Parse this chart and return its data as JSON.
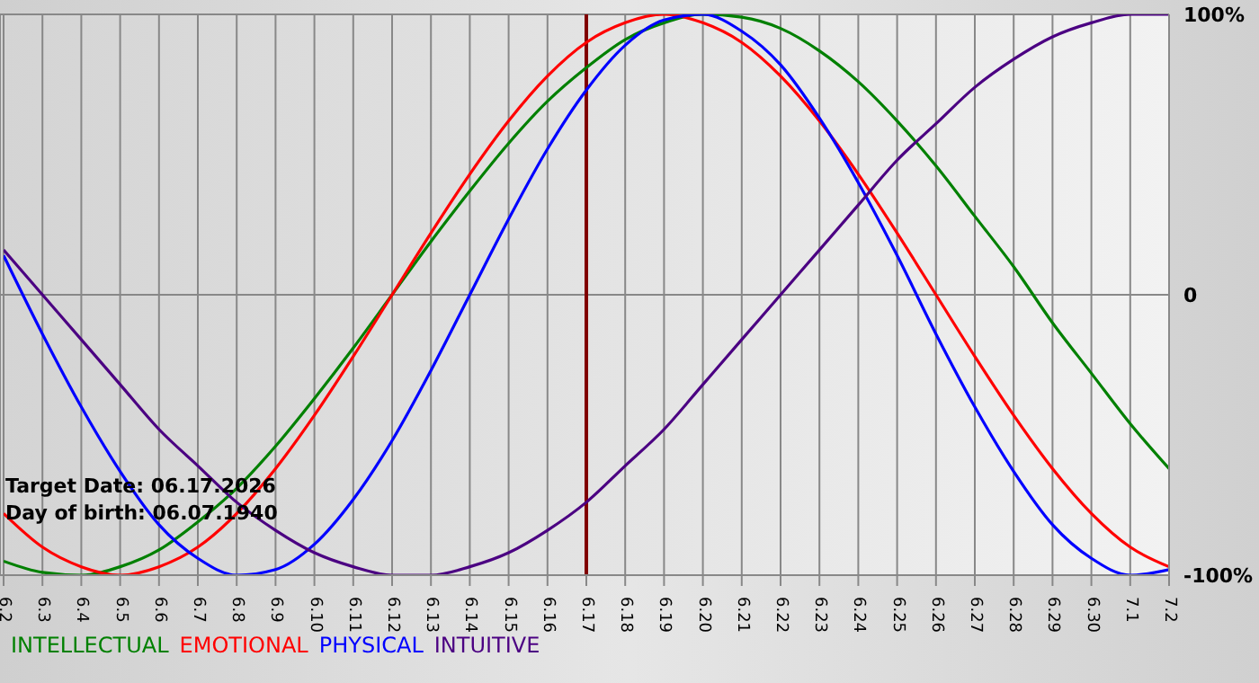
{
  "chart_data": {
    "type": "line",
    "categories": [
      "6.2",
      "6.3",
      "6.4",
      "6.5",
      "6.6",
      "6.7",
      "6.8",
      "6.9",
      "6.10",
      "6.11",
      "6.12",
      "6.13",
      "6.14",
      "6.15",
      "6.16",
      "6.17",
      "6.18",
      "6.19",
      "6.20",
      "6.21",
      "6.22",
      "6.23",
      "6.24",
      "6.25",
      "6.26",
      "6.27",
      "6.28",
      "6.29",
      "6.30",
      "7.1",
      "7.2"
    ],
    "series": [
      {
        "name": "INTELLECTUAL",
        "color": "#008000",
        "values": [
          -95,
          -99,
          -100,
          -97,
          -91,
          -81,
          -69,
          -54,
          -37,
          -19,
          0,
          19,
          37,
          54,
          69,
          81,
          91,
          97,
          100,
          99,
          95,
          87,
          76,
          62,
          46,
          28,
          10,
          -10,
          -28,
          -46,
          -62
        ]
      },
      {
        "name": "EMOTIONAL",
        "color": "#ff0000",
        "values": [
          -78,
          -90,
          -97,
          -100,
          -97,
          -90,
          -78,
          -62,
          -43,
          -22,
          0,
          22,
          43,
          62,
          78,
          90,
          97,
          100,
          97,
          90,
          78,
          62,
          43,
          22,
          0,
          -22,
          -43,
          -62,
          -78,
          -90,
          -97
        ]
      },
      {
        "name": "PHYSICAL",
        "color": "#0000ff",
        "values": [
          14,
          -14,
          -40,
          -63,
          -82,
          -94,
          -100,
          -98,
          -89,
          -73,
          -52,
          -27,
          0,
          27,
          52,
          73,
          89,
          98,
          100,
          94,
          82,
          63,
          40,
          14,
          -14,
          -40,
          -63,
          -82,
          -94,
          -100,
          -98
        ]
      },
      {
        "name": "INTUITIVE",
        "color": "#4b0082",
        "values": [
          16,
          0,
          -16,
          -32,
          -48,
          -61,
          -74,
          -84,
          -92,
          -97,
          -100,
          -100,
          -97,
          -92,
          -84,
          -74,
          -61,
          -48,
          -32,
          -16,
          0,
          16,
          32,
          48,
          61,
          74,
          84,
          92,
          97,
          100,
          100
        ]
      }
    ],
    "ylim": [
      -100,
      100
    ],
    "yticks": [
      {
        "value": 100,
        "label": "100%"
      },
      0,
      {
        "value": -100,
        "label": "-100%"
      }
    ],
    "ref_lines": [
      {
        "axis": "x",
        "value": "6.17",
        "color": "#800000"
      }
    ],
    "annotations": [
      "Target Date: 06.17.2026",
      "Day of birth: 06.07.1940"
    ],
    "grid": true,
    "legend": "bottom left",
    "marker": "none",
    "line_style": "solid"
  }
}
